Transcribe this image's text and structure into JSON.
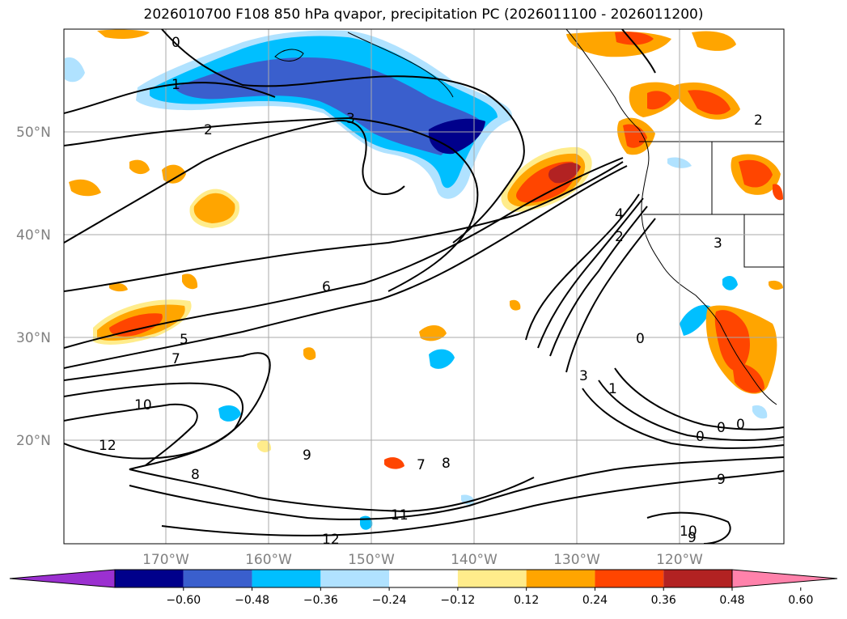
{
  "title": "2026010700 F108 850 hPa qvapor, precipitation PC (2026011100 - 2026011200)",
  "map": {
    "lat_labels": [
      "50°N",
      "40°N",
      "30°N",
      "20°N"
    ],
    "lon_labels": [
      "170°W",
      "160°W",
      "150°W",
      "140°W",
      "130°W",
      "120°W"
    ],
    "contour_labels": [
      "0",
      "1",
      "2",
      "3",
      "6",
      "5",
      "7",
      "10",
      "12",
      "8",
      "9",
      "7",
      "8",
      "11",
      "12",
      "4",
      "2",
      "0",
      "3",
      "1",
      "0",
      "0",
      "0",
      "9",
      "10",
      "9",
      "2",
      "3"
    ]
  },
  "colorbar": {
    "tick_labels": [
      "−0.60",
      "−0.48",
      "−0.36",
      "−0.24",
      "−0.12",
      "0.12",
      "0.24",
      "0.36",
      "0.48",
      "0.60"
    ],
    "colors": [
      "#9b30d0",
      "#00008b",
      "#3a5fcd",
      "#00bfff",
      "#b0e2ff",
      "#ffffff",
      "#ffec8b",
      "#ffa500",
      "#ff4500",
      "#b22222",
      "#ff82ab"
    ]
  }
}
